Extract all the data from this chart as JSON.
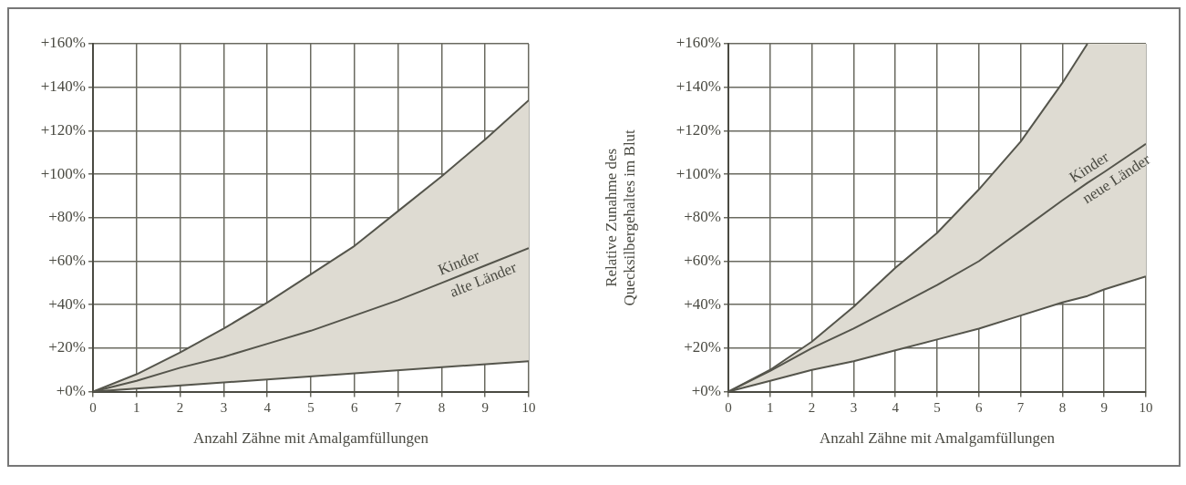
{
  "chart_data": [
    {
      "type": "line",
      "xlabel": "Anzahl Zähne mit Amalgamfüllungen",
      "xlim": [
        0,
        10
      ],
      "xticks": [
        0,
        1,
        2,
        3,
        4,
        5,
        6,
        7,
        8,
        9,
        10
      ],
      "ylim": [
        0,
        160
      ],
      "yticks": [
        {
          "value": 0,
          "label": "+0%"
        },
        {
          "value": 20,
          "label": "+20%"
        },
        {
          "value": 40,
          "label": "+40%"
        },
        {
          "value": 60,
          "label": "+60%"
        },
        {
          "value": 80,
          "label": "+80%"
        },
        {
          "value": 100,
          "label": "+100%"
        },
        {
          "value": 120,
          "label": "+120%"
        },
        {
          "value": 140,
          "label": "+140%"
        },
        {
          "value": 160,
          "label": "+160%"
        }
      ],
      "grid": true,
      "series": [
        {
          "color": "#55554c",
          "x": [
            0,
            1,
            2,
            3,
            4,
            5,
            6,
            7,
            8,
            9,
            10
          ],
          "values": [
            0,
            8,
            18,
            29,
            41,
            54,
            67,
            83,
            99,
            116,
            134
          ]
        },
        {
          "name": "Kinder alte Länder",
          "color": "#55554c",
          "x": [
            0,
            1,
            2,
            3,
            4,
            5,
            6,
            7,
            8,
            9,
            10
          ],
          "values": [
            0,
            5,
            11,
            16,
            22,
            28,
            35,
            42,
            50,
            58,
            66
          ],
          "lower": [
            0,
            1.4,
            2.8,
            4.2,
            5.6,
            7,
            8.4,
            9.8,
            11.2,
            12.6,
            14
          ],
          "upper": [
            0,
            8,
            18,
            29,
            41,
            54,
            67,
            83,
            99,
            116,
            134
          ]
        },
        {
          "color": "#55554c",
          "x": [
            0,
            10
          ],
          "values": [
            0,
            14
          ]
        }
      ]
    },
    {
      "type": "line",
      "xlabel": "Anzahl Zähne mit Amalgamfüllungen",
      "ylabel": "Relative Zunahme des Quecksilbergehaltes im Blut",
      "xlim": [
        0,
        10
      ],
      "xticks": [
        0,
        1,
        2,
        3,
        4,
        5,
        6,
        7,
        8,
        9,
        10
      ],
      "ylim": [
        0,
        160
      ],
      "yticks": [
        {
          "value": 0,
          "label": "+0%"
        },
        {
          "value": 20,
          "label": "+20%"
        },
        {
          "value": 40,
          "label": "+40%"
        },
        {
          "value": 60,
          "label": "+60%"
        },
        {
          "value": 80,
          "label": "+80%"
        },
        {
          "value": 100,
          "label": "+100%"
        },
        {
          "value": 120,
          "label": "+120%"
        },
        {
          "value": 140,
          "label": "+140%"
        },
        {
          "value": 160,
          "label": "+160%"
        }
      ],
      "grid": true,
      "series": [
        {
          "color": "#55554c",
          "x": [
            0,
            1,
            2,
            3,
            4,
            5,
            6,
            7,
            8,
            8.6
          ],
          "values": [
            0,
            10,
            23,
            39,
            57,
            73,
            93,
            115,
            142,
            160
          ]
        },
        {
          "name": "Kinder neue Länder",
          "color": "#55554c",
          "x": [
            0,
            1,
            2,
            3,
            4,
            5,
            6,
            7,
            8,
            8.6,
            9,
            10
          ],
          "values": [
            0,
            9.5,
            20,
            29,
            39,
            49,
            60,
            74,
            88,
            96,
            101,
            114
          ],
          "lower": [
            0,
            5,
            10,
            14,
            19,
            24,
            29,
            35,
            41,
            44,
            47,
            53
          ],
          "upper": [
            0,
            10,
            23,
            39,
            57,
            73,
            93,
            115,
            142,
            160,
            160,
            160
          ]
        },
        {
          "color": "#55554c",
          "x": [
            0,
            1,
            2,
            3,
            4,
            5,
            6,
            7,
            8,
            8.6,
            9,
            10
          ],
          "values": [
            0,
            5,
            10,
            14,
            19,
            24,
            29,
            35,
            41,
            44,
            47,
            53
          ]
        }
      ]
    }
  ]
}
